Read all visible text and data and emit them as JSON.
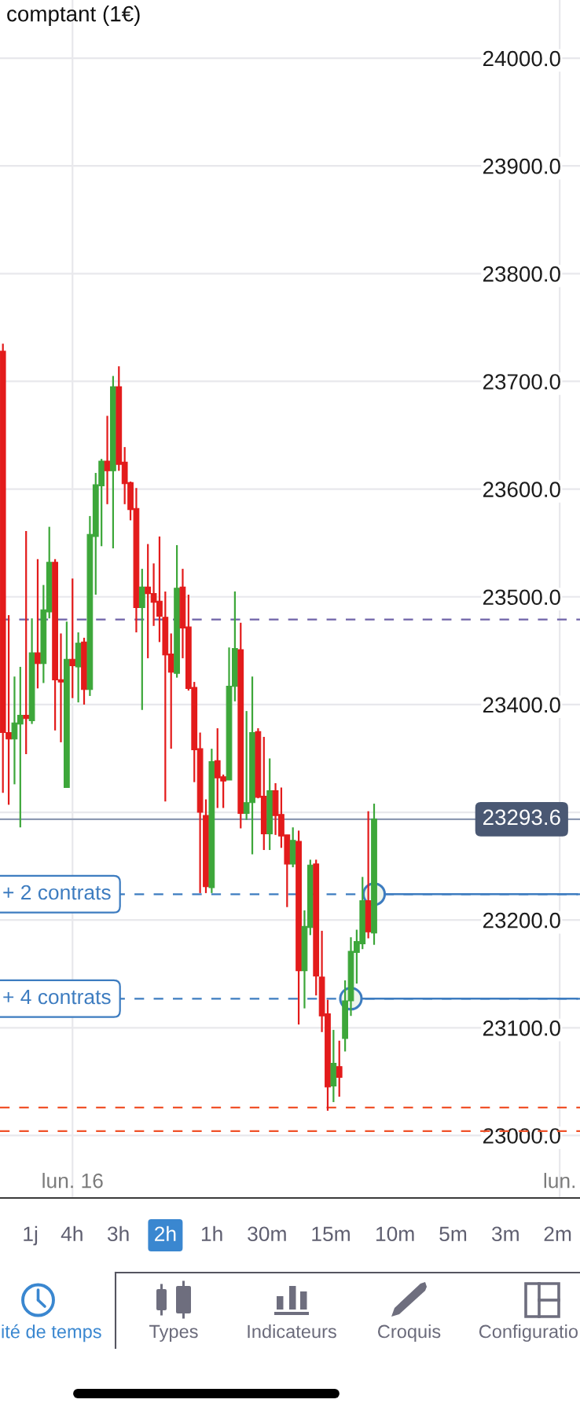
{
  "chart_data": {
    "type": "candlestick",
    "title": "comptant (1€)",
    "categories": [
      null,
      null,
      null,
      null,
      null,
      null,
      null,
      null,
      null,
      null,
      null,
      null,
      "lun. 16",
      null,
      null,
      null,
      null,
      null,
      null,
      null,
      null,
      null,
      null,
      null,
      null,
      null,
      null,
      null,
      null,
      null,
      null,
      null,
      null,
      null,
      null,
      null,
      null,
      null,
      null,
      null,
      null,
      null,
      null,
      null,
      null,
      null,
      null,
      null,
      null,
      null,
      null,
      null,
      null,
      null,
      null,
      null,
      null,
      null,
      null,
      null,
      null,
      null,
      null,
      null,
      null,
      null,
      null,
      null,
      null,
      null,
      null,
      null,
      null,
      null,
      null,
      null,
      null,
      null,
      null,
      null,
      null,
      null,
      null,
      null,
      null,
      null,
      null,
      null,
      null,
      null,
      null,
      null,
      null,
      null,
      null,
      null,
      "lun.",
      null,
      null,
      null
    ],
    "ohlc": [
      [
        23728,
        23735,
        23318,
        23374
      ],
      [
        23374,
        23483,
        23307,
        23368
      ],
      [
        23368,
        23426,
        23326,
        23383
      ],
      [
        23382,
        23435,
        23286,
        23390
      ],
      [
        23390,
        23561,
        23354,
        23387
      ],
      [
        23385,
        23480,
        23382,
        23448
      ],
      [
        23448,
        23535,
        23415,
        23438
      ],
      [
        23438,
        23511,
        23420,
        23488
      ],
      [
        23486,
        23565,
        23480,
        23532
      ],
      [
        23532,
        23535,
        23376,
        23423
      ],
      [
        23423,
        23466,
        23365,
        23421
      ],
      [
        23323,
        23477,
        23323,
        23442
      ],
      [
        23442,
        23517,
        23406,
        23436
      ],
      [
        23435,
        23467,
        23402,
        23457
      ],
      [
        23458,
        23462,
        23400,
        23414
      ],
      [
        23414,
        23575,
        23408,
        23558
      ],
      [
        23556,
        23615,
        23502,
        23604
      ],
      [
        23603,
        23628,
        23547,
        23626
      ],
      [
        23626,
        23668,
        23586,
        23617
      ],
      [
        23617,
        23705,
        23545,
        23695
      ],
      [
        23695,
        23714,
        23617,
        23623
      ],
      [
        23625,
        23639,
        23586,
        23605
      ],
      [
        23606,
        23607,
        23571,
        23581
      ],
      [
        23582,
        23601,
        23467,
        23490
      ],
      [
        23490,
        23526,
        23395,
        23509
      ],
      [
        23509,
        23549,
        23443,
        23503
      ],
      [
        23503,
        23531,
        23473,
        23495
      ],
      [
        23496,
        23556,
        23458,
        23482
      ],
      [
        23481,
        23505,
        23310,
        23446
      ],
      [
        23447,
        23466,
        23359,
        23430
      ],
      [
        23429,
        23548,
        23425,
        23508
      ],
      [
        23509,
        23526,
        23443,
        23471
      ],
      [
        23472,
        23502,
        23413,
        23415
      ],
      [
        23416,
        23421,
        23328,
        23358
      ],
      [
        23359,
        23374,
        23225,
        23300
      ],
      [
        23297,
        23312,
        23225,
        23231
      ],
      [
        23230,
        23359,
        23225,
        23347
      ],
      [
        23348,
        23378,
        23304,
        23332
      ],
      [
        23333,
        23335,
        23304,
        23329
      ],
      [
        23330,
        23453,
        23330,
        23417
      ],
      [
        23417,
        23505,
        23403,
        23452
      ],
      [
        23451,
        23476,
        23285,
        23299
      ],
      [
        23299,
        23394,
        23293,
        23309
      ],
      [
        23309,
        23426,
        23261,
        23374
      ],
      [
        23375,
        23378,
        23313,
        23314
      ],
      [
        23315,
        23370,
        23265,
        23280
      ],
      [
        23280,
        23350,
        23265,
        23320
      ],
      [
        23320,
        23327,
        23279,
        23297
      ],
      [
        23298,
        23323,
        23267,
        23278
      ],
      [
        23279,
        23279,
        23212,
        23252
      ],
      [
        23252,
        23286,
        23249,
        23274
      ],
      [
        23273,
        23283,
        23103,
        23153
      ],
      [
        23153,
        23209,
        23118,
        23194
      ],
      [
        23193,
        23256,
        23186,
        23251
      ],
      [
        23252,
        23256,
        23130,
        23148
      ],
      [
        23147,
        23190,
        23096,
        23111
      ],
      [
        23113,
        23126,
        23023,
        23045
      ],
      [
        23046,
        23098,
        23031,
        23067
      ],
      [
        23064,
        23088,
        23036,
        23054
      ],
      [
        23090,
        23144,
        23078,
        23125
      ],
      [
        23125,
        23184,
        23111,
        23171
      ],
      [
        23170,
        23191,
        23141,
        23180
      ],
      [
        23178,
        23240,
        23173,
        23218
      ],
      [
        23218,
        23301,
        23183,
        23189
      ],
      [
        23188,
        23308,
        23177,
        23293.6
      ],
      null,
      null,
      null,
      null,
      null,
      null,
      null,
      null,
      null,
      null,
      null,
      null,
      null,
      null,
      null,
      null,
      null,
      null,
      null,
      null,
      null,
      null,
      null,
      null,
      null,
      null,
      null,
      null,
      null,
      null,
      null,
      null,
      null,
      null,
      null
    ],
    "colors": [
      "#e31b1b",
      "#e31b1b",
      "#3da73a",
      "#3da73a",
      "#e31b1b",
      "#3da73a",
      "#e31b1b",
      "#3da73a",
      "#3da73a",
      "#e31b1b",
      "#e31b1b",
      "#3da73a",
      "#e31b1b",
      "#3da73a",
      "#e31b1b",
      "#3da73a",
      "#3da73a",
      "#3da73a",
      "#e31b1b",
      "#3da73a",
      "#e31b1b",
      "#e31b1b",
      "#e31b1b",
      "#e31b1b",
      "#3da73a",
      "#e31b1b",
      "#e31b1b",
      "#e31b1b",
      "#e31b1b",
      "#e31b1b",
      "#3da73a",
      "#e31b1b",
      "#e31b1b",
      "#e31b1b",
      "#e31b1b",
      "#e31b1b",
      "#3da73a",
      "#e31b1b",
      "#e31b1b",
      "#3da73a",
      "#3da73a",
      "#e31b1b",
      "#3da73a",
      "#3da73a",
      "#e31b1b",
      "#e31b1b",
      "#3da73a",
      "#e31b1b",
      "#e31b1b",
      "#e31b1b",
      "#3da73a",
      "#e31b1b",
      "#3da73a",
      "#3da73a",
      "#e31b1b",
      "#e31b1b",
      "#e31b1b",
      "#3da73a",
      "#e31b1b",
      "#3da73a",
      "#3da73a",
      "#3da73a",
      "#3da73a",
      "#e31b1b",
      "#3da73a",
      null,
      null,
      null,
      null,
      null,
      null,
      null,
      null,
      null,
      null,
      null,
      null,
      null,
      null,
      null,
      null,
      null,
      null,
      null,
      null,
      null,
      null,
      null,
      null,
      null,
      null,
      null,
      null,
      null,
      null,
      null,
      null,
      null,
      null,
      null
    ],
    "ylim": [
      22942,
      24054
    ],
    "yticks": [
      {
        "value": 23000,
        "label": "23000.0"
      },
      {
        "value": 23100,
        "label": "23100.0"
      },
      {
        "value": 23200,
        "label": "23200.0"
      },
      {
        "value": 23300,
        "label": null
      },
      {
        "value": 23400,
        "label": "23400.0"
      },
      {
        "value": 23500,
        "label": "23500.0"
      },
      {
        "value": 23600,
        "label": "23600.0"
      },
      {
        "value": 23700,
        "label": "23700.0"
      },
      {
        "value": 23800,
        "label": "23800.0"
      },
      {
        "value": 23900,
        "label": "23900.0"
      },
      {
        "value": 24000,
        "label": "24000.0"
      }
    ],
    "grid": true,
    "ref_lines": [
      {
        "axis": "y",
        "value": 23479,
        "color": "#6f63a8",
        "line_style": "dashed"
      },
      {
        "axis": "y",
        "value": 23293.6,
        "label": "23293.6",
        "color": "#8e9ab3",
        "line_style": "solid"
      },
      {
        "axis": "y",
        "value": 23224,
        "label": "+ 2 contrats",
        "color": "#3d7cc0",
        "line_style": "dashed"
      },
      {
        "axis": "y",
        "value": 23127,
        "label": "+ 4 contrats",
        "color": "#3d7cc0",
        "line_style": "dashed"
      },
      {
        "axis": "y",
        "value": 23026,
        "color": "#f0522a",
        "line_style": "dashed"
      },
      {
        "axis": "y",
        "value": 23004,
        "color": "#f0522a",
        "line_style": "dashed"
      }
    ],
    "series": [
      {
        "type": "line",
        "color": "#3d7cc0",
        "values": [
          null,
          null,
          null,
          null,
          null,
          null,
          null,
          null,
          null,
          null,
          null,
          null,
          null,
          null,
          null,
          null,
          null,
          null,
          null,
          null,
          null,
          null,
          null,
          null,
          null,
          null,
          null,
          null,
          null,
          null,
          null,
          null,
          null,
          null,
          null,
          null,
          null,
          null,
          null,
          null,
          null,
          null,
          null,
          null,
          null,
          null,
          null,
          null,
          null,
          null,
          null,
          null,
          null,
          null,
          null,
          null,
          null,
          null,
          null,
          null,
          null,
          null,
          null,
          null,
          null,
          null,
          23224,
          23224,
          23224,
          23224,
          23224,
          23224,
          23224,
          23224,
          23224,
          23224,
          23224,
          23224,
          23224,
          23224,
          23224,
          23224,
          23224,
          23224,
          23224,
          23224,
          23224,
          23224,
          23224,
          23224,
          23224,
          23224,
          23224,
          23224,
          23224,
          23224,
          23224,
          23224,
          23224,
          23224
        ]
      },
      {
        "type": "line",
        "color": "#3d7cc0",
        "values": [
          null,
          null,
          null,
          null,
          null,
          null,
          null,
          null,
          null,
          null,
          null,
          null,
          null,
          null,
          null,
          null,
          null,
          null,
          null,
          null,
          null,
          null,
          null,
          null,
          null,
          null,
          null,
          null,
          null,
          null,
          null,
          null,
          null,
          null,
          null,
          null,
          null,
          null,
          null,
          null,
          null,
          null,
          null,
          null,
          null,
          null,
          null,
          null,
          null,
          null,
          null,
          null,
          null,
          null,
          null,
          null,
          null,
          null,
          null,
          null,
          null,
          null,
          23127,
          23127,
          23127,
          23127,
          23127,
          23127,
          23127,
          23127,
          23127,
          23127,
          23127,
          23127,
          23127,
          23127,
          23127,
          23127,
          23127,
          23127,
          23127,
          23127,
          23127,
          23127,
          23127,
          23127,
          23127,
          23127,
          23127,
          23127,
          23127,
          23127,
          23127,
          23127,
          23127,
          23127,
          23127,
          23127,
          23127,
          23127
        ]
      },
      {
        "type": "scatter",
        "color": "#3d7cc0",
        "marker": "circle",
        "values": [
          null,
          null,
          null,
          null,
          null,
          null,
          null,
          null,
          null,
          null,
          null,
          null,
          null,
          null,
          null,
          null,
          null,
          null,
          null,
          null,
          null,
          null,
          null,
          null,
          null,
          null,
          null,
          null,
          null,
          null,
          null,
          null,
          null,
          null,
          null,
          null,
          null,
          null,
          null,
          null,
          null,
          null,
          null,
          null,
          null,
          null,
          null,
          null,
          null,
          null,
          null,
          null,
          null,
          null,
          null,
          null,
          null,
          null,
          null,
          null,
          23127,
          null,
          null,
          null,
          23224,
          null,
          null,
          null,
          null,
          null,
          null,
          null,
          null,
          null,
          null,
          null,
          null,
          null,
          null,
          null,
          null,
          null,
          null,
          null,
          null,
          null,
          null,
          null,
          null,
          null,
          null,
          null,
          null,
          null,
          null,
          null,
          null,
          null,
          null,
          null
        ]
      }
    ],
    "annotations": [
      "1j",
      "4h",
      "3h",
      "2h",
      "1h",
      "30m",
      "15m",
      "10m",
      "5m",
      "3m",
      "2m",
      "ité de temps",
      "Types",
      "Indicateurs",
      "Croquis",
      "Configuratio"
    ]
  }
}
